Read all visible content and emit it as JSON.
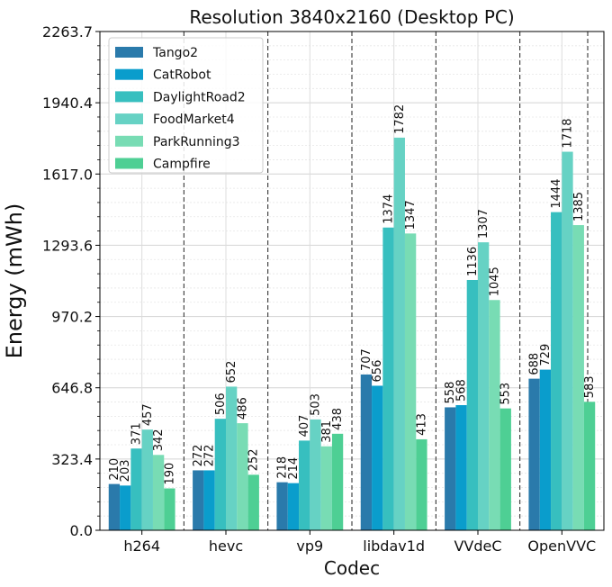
{
  "chart_data": {
    "type": "bar",
    "title": "Resolution 3840x2160 (Desktop PC)",
    "xlabel": "Codec",
    "ylabel": "Energy (mWh)",
    "categories": [
      "h264",
      "hevc",
      "vp9",
      "libdav1d",
      "VVdeC",
      "OpenVVC"
    ],
    "yticks": [
      "0.0",
      "323.4",
      "646.8",
      "970.2",
      "1293.6",
      "1617.0",
      "1940.4",
      "2263.7"
    ],
    "ylim": [
      0,
      2263.7
    ],
    "grid": true,
    "legend_position": "top-left",
    "series": [
      {
        "name": "Tango2",
        "color": "#2a7aab",
        "values": [
          210,
          272,
          218,
          707,
          558,
          688
        ]
      },
      {
        "name": "CatRobot",
        "color": "#0a9dcc",
        "values": [
          203,
          272,
          214,
          656,
          568,
          729
        ]
      },
      {
        "name": "DaylightRoad2",
        "color": "#37bfbf",
        "values": [
          371,
          506,
          407,
          1374,
          1136,
          1444
        ]
      },
      {
        "name": "FoodMarket4",
        "color": "#66d2c4",
        "values": [
          457,
          652,
          503,
          1782,
          1307,
          1718
        ]
      },
      {
        "name": "ParkRunning3",
        "color": "#78dcb4",
        "values": [
          342,
          486,
          381,
          1347,
          1045,
          1385
        ]
      },
      {
        "name": "Campfire",
        "color": "#4ecf94",
        "values": [
          190,
          252,
          438,
          413,
          553,
          583
        ]
      }
    ]
  }
}
